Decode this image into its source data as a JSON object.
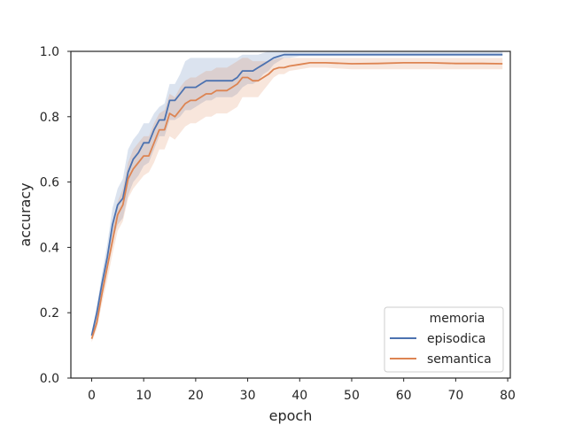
{
  "chart_data": {
    "type": "line",
    "title": "",
    "xlabel": "epoch",
    "ylabel": "accuracy",
    "xlim": [
      -4,
      80.5
    ],
    "ylim": [
      0.0,
      1.0
    ],
    "xticks": [
      "0",
      "10",
      "20",
      "30",
      "40",
      "50",
      "60",
      "70",
      "80"
    ],
    "yticks": [
      "0.0",
      "0.2",
      "0.4",
      "0.6",
      "0.8",
      "1.0"
    ],
    "grid": false,
    "legend": {
      "title": "memoria",
      "placement": "lower-right"
    },
    "series": [
      {
        "name": "episodica",
        "color": "#4c72b0",
        "x": [
          0,
          1,
          2,
          3,
          4,
          5,
          6,
          7,
          8,
          9,
          10,
          11,
          12,
          13,
          14,
          15,
          16,
          17,
          18,
          19,
          20,
          21,
          22,
          23,
          24,
          25,
          26,
          27,
          28,
          29,
          30,
          31,
          32,
          33,
          34,
          35,
          36,
          37,
          38,
          40,
          42,
          45,
          50,
          55,
          60,
          65,
          70,
          75,
          79
        ],
        "y": [
          0.13,
          0.2,
          0.29,
          0.37,
          0.47,
          0.53,
          0.55,
          0.63,
          0.67,
          0.69,
          0.72,
          0.72,
          0.76,
          0.79,
          0.79,
          0.85,
          0.85,
          0.87,
          0.89,
          0.89,
          0.89,
          0.9,
          0.91,
          0.91,
          0.91,
          0.91,
          0.91,
          0.91,
          0.92,
          0.94,
          0.94,
          0.94,
          0.95,
          0.96,
          0.97,
          0.98,
          0.985,
          0.99,
          0.99,
          0.99,
          0.99,
          0.99,
          0.99,
          0.99,
          0.99,
          0.99,
          0.99,
          0.99,
          0.99
        ],
        "ci_lower": [
          0.12,
          0.18,
          0.26,
          0.33,
          0.42,
          0.47,
          0.49,
          0.56,
          0.6,
          0.62,
          0.65,
          0.66,
          0.7,
          0.74,
          0.74,
          0.79,
          0.79,
          0.8,
          0.82,
          0.82,
          0.83,
          0.84,
          0.85,
          0.85,
          0.86,
          0.86,
          0.86,
          0.86,
          0.87,
          0.89,
          0.9,
          0.9,
          0.91,
          0.93,
          0.94,
          0.96,
          0.97,
          0.98,
          0.98,
          0.985,
          0.985,
          0.985,
          0.985,
          0.985,
          0.985,
          0.985,
          0.985,
          0.985,
          0.985
        ],
        "ci_upper": [
          0.14,
          0.22,
          0.32,
          0.41,
          0.52,
          0.58,
          0.61,
          0.7,
          0.73,
          0.75,
          0.78,
          0.78,
          0.81,
          0.83,
          0.84,
          0.9,
          0.9,
          0.93,
          0.97,
          0.98,
          0.98,
          0.98,
          0.98,
          0.98,
          0.98,
          0.98,
          0.98,
          0.98,
          0.98,
          0.99,
          0.99,
          0.99,
          0.99,
          0.995,
          1.0,
          1.0,
          1.0,
          1.0,
          1.0,
          1.0,
          1.0,
          1.0,
          1.0,
          1.0,
          1.0,
          1.0,
          1.0,
          1.0,
          1.0
        ]
      },
      {
        "name": "semantica",
        "color": "#dd8452",
        "x": [
          0,
          1,
          2,
          3,
          4,
          5,
          6,
          7,
          8,
          9,
          10,
          11,
          12,
          13,
          14,
          15,
          16,
          17,
          18,
          19,
          20,
          21,
          22,
          23,
          24,
          25,
          26,
          27,
          28,
          29,
          30,
          31,
          32,
          33,
          34,
          35,
          36,
          37,
          38,
          40,
          42,
          45,
          50,
          55,
          60,
          65,
          70,
          75,
          79
        ],
        "y": [
          0.12,
          0.17,
          0.26,
          0.34,
          0.42,
          0.5,
          0.53,
          0.61,
          0.64,
          0.66,
          0.68,
          0.68,
          0.72,
          0.76,
          0.76,
          0.81,
          0.8,
          0.82,
          0.84,
          0.85,
          0.85,
          0.86,
          0.87,
          0.87,
          0.88,
          0.88,
          0.88,
          0.89,
          0.9,
          0.92,
          0.92,
          0.91,
          0.91,
          0.92,
          0.93,
          0.945,
          0.95,
          0.95,
          0.955,
          0.96,
          0.965,
          0.965,
          0.962,
          0.963,
          0.965,
          0.965,
          0.963,
          0.963,
          0.962
        ],
        "ci_lower": [
          0.11,
          0.15,
          0.23,
          0.3,
          0.38,
          0.45,
          0.48,
          0.55,
          0.58,
          0.6,
          0.62,
          0.63,
          0.66,
          0.7,
          0.7,
          0.74,
          0.73,
          0.75,
          0.77,
          0.78,
          0.78,
          0.79,
          0.8,
          0.8,
          0.81,
          0.81,
          0.81,
          0.82,
          0.83,
          0.86,
          0.86,
          0.86,
          0.86,
          0.88,
          0.9,
          0.92,
          0.93,
          0.93,
          0.94,
          0.945,
          0.95,
          0.95,
          0.945,
          0.945,
          0.945,
          0.945,
          0.945,
          0.945,
          0.945
        ],
        "ci_upper": [
          0.13,
          0.19,
          0.29,
          0.38,
          0.46,
          0.54,
          0.58,
          0.66,
          0.7,
          0.72,
          0.74,
          0.74,
          0.78,
          0.81,
          0.82,
          0.87,
          0.86,
          0.89,
          0.91,
          0.92,
          0.92,
          0.93,
          0.94,
          0.94,
          0.95,
          0.95,
          0.95,
          0.96,
          0.97,
          0.98,
          0.98,
          0.97,
          0.97,
          0.97,
          0.97,
          0.975,
          0.98,
          0.98,
          0.98,
          0.98,
          0.98,
          0.98,
          0.98,
          0.98,
          0.98,
          0.98,
          0.98,
          0.98,
          0.98
        ]
      }
    ]
  }
}
